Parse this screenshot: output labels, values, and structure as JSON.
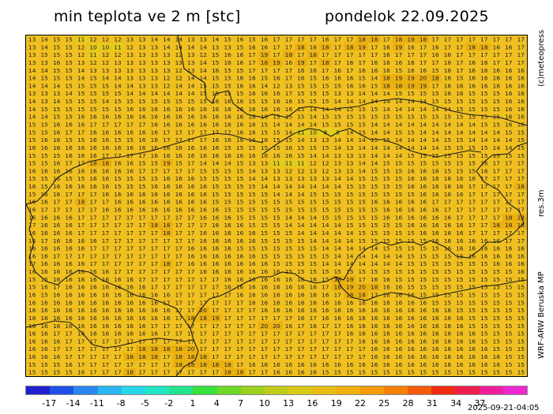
{
  "header": {
    "title_left": "min teplota ve 2 m [stc]",
    "title_right": "pondelok 22.09.2025"
  },
  "side_labels": {
    "copyright": "(c)meteopress",
    "resolution": "res.3m",
    "model": "WRF-ARW Beruska MP"
  },
  "colorbar": {
    "tick_labels": [
      "-17",
      "-14",
      "-11",
      "-8",
      "-5",
      "-2",
      "1",
      "4",
      "7",
      "10",
      "13",
      "16",
      "19",
      "22",
      "25",
      "28",
      "31",
      "34",
      "37"
    ],
    "colors": [
      "#2020d0",
      "#2050e8",
      "#2a86f0",
      "#2ab6f2",
      "#28d8e8",
      "#22e6c4",
      "#22e48e",
      "#3ae03c",
      "#6ed82a",
      "#9ad01e",
      "#c0cc18",
      "#d8c814",
      "#e8bc10",
      "#f0b00a",
      "#f49c08",
      "#f68006",
      "#f65c08",
      "#f42a10",
      "#f01e4c",
      "#f01e9a",
      "#f028d2"
    ]
  },
  "footer": {
    "timestamp": "2025-09-21-04:05"
  },
  "map": {
    "background_color": "#f0c020",
    "rows": [
      "13 14 15 15 11 12 12 12 13 13 14 14 14 13 13 14 15 16 15 16 17 17 17 17 16 17 17 18 18 17 18 19 18 17 17 17 17 17 17 17 17",
      "13 14 15 15 12 10 10 11 12 13 13 14 14 14 14 13 13 15 16 16 17 17 18 16 18 17 18 19 17 16 19 16 17 16 17 17 18 18 16 16 17",
      "13 15 15 15 12 11 12 12 13 13 13 13 12 13 12 15 16 16 17 19 17 18 17 18 17 17 17 17 17 16 17 17 17 16 16 17 17 17 17 17 17",
      "13 13 16 15 13 12 12 13 13 13 13 13 13 13 14 15 16 16 17 18 19 16 19 17 18 17 16 17 16 16 16 16 17 17 16 17 16 16 17 17 17",
      "14 14 15 15 14 13 13 13 13 13 13 13 12 13 14 16 15 15 17 17 17 17 16 16 17 16 17 16 16 16 15 16 16 15 16 17 16 16 16 16 16",
      "14 15 15 15 14 15 14 14 13 13 13 12 12 14 14 15 15 16 16 15 16 17 16 15 16 16 16 15 14 18 19 19 20 18 16 15 16 16 16 16 16",
      "14 14 14 15 15 15 15 14 14 13 13 12 14 14 15 15 15 16 16 14 12 13 15 15 15 15 16 16 15 18 18 19 19 17 16 16 16 16 16 16 16",
      "13 13 13 14 15 15 15 15 14 14 14 14 14 14 15 15 15 15 16 16 16 17 15 15 15 13 13 14 14 14 15 15 15 15 16 16 15 15 15 16 16",
      "14 13 14 15 15 15 14 15 15 15 15 15 15 15 15 16 16 16 15 15 16 16 15 15 15 14 14 14 14 14 14 14 14 15 15 15 15 15 15 16 16",
      "14 15 15 15 15 15 15 15 16 16 16 16 16 16 16 16 16 16 16 16 16 16 15 14 14 14 15 15 15 14 14 14 14 14 14 15 15 15 15 16 16",
      "14 14 15 15 16 16 16 16 16 16 16 16 16 16 16 16 16 16 16 16 15 15 15 14 15 15 15 15 15 15 15 15 15 15 15 15 15 15 15 16 16",
      "15 15 16 16 16 17 17 17 17 17 16 16 16 16 16 16 16 16 16 15 14 14 14 14 15 15 15 15 14 14 14 14 14 14 14 14 14 15 15 16 16",
      "15 15 16 17 17 16 16 16 16 16 16 17 17 17 17 17 17 16 16 15 15 14 11 10 8 8 14 15 14 14 15 15 14 14 14 14 14 14 14 15 15",
      "15 16 16 15 15 16 16 15 15 16 16 17 17 17 17 16 16 16 16 16 15 15 14 13 13 14 14 14 15 15 14 14 14 14 15 15 14 14 14 14 15",
      "16 16 16 16 16 16 16 16 16 16 16 16 16 16 16 16 15 15 15 15 15 16 15 15 15 14 13 14 14 14 14 14 14 14 15 15 15 15 14 14 15",
      "15 15 15 16 16 16 17 17 17 17 16 16 16 16 16 16 16 16 16 16 16 16 15 14 14 13 13 13 14 14 14 15 15 15 15 15 15 15 15 15 15",
      "15 15 16 17 17 18 18 16 16 15 15 19 15 17 14 14 14 15 13 13 11 11 11 12 12 13 13 14 14 15 15 15 15 15 15 15 15 16 17 17 17",
      "16 16 16 16 16 16 16 16 16 17 17 17 17 17 15 15 15 15 14 13 13 12 12 13 12 13 13 14 15 15 15 16 16 16 15 15 15 16 17 17 17",
      "15 15 16 15 15 16 16 15 15 15 15 16 16 16 15 15 15 15 14 14 13 13 13 13 13 14 14 15 15 15 15 16 16 16 16 16 16 17 17 17 17",
      "16 15 16 16 16 16 16 15 15 15 16 16 16 16 16 15 15 15 15 14 14 14 14 14 14 14 15 15 15 15 15 16 16 16 16 16 17 17 17 17 18",
      "15 16 16 17 17 17 16 16 16 16 16 16 16 16 16 15 15 15 15 15 14 14 14 15 15 15 15 15 15 15 15 15 16 16 16 16 17 17 17 17 17",
      "16 16 17 17 18 17 17 16 16 16 16 16 16 16 16 15 15 15 15 15 15 15 15 15 15 15 15 15 16 16 16 16 16 17 17 17 17 17 17 17 17",
      "16 17 17 17 17 17 16 16 16 16 16 16 16 16 16 16 15 15 15 15 15 15 15 15 15 15 15 15 15 16 16 16 16 16 17 17 17 17 17 17 17",
      "16 16 16 16 17 17 17 17 17 17 17 17 17 17 16 16 16 15 15 15 15 14 14 14 15 15 15 15 15 16 16 16 16 16 16 17 17 17 17 18 18",
      "17 16 16 16 17 17 17 17 17 17 18 18 17 17 17 16 16 16 15 15 15 14 14 14 14 14 15 15 15 15 15 16 16 16 16 16 17 17 18 18 18",
      "16 16 16 16 17 17 17 17 17 17 17 18 17 17 16 16 16 16 16 15 15 15 14 14 14 14 14 15 15 15 15 15 16 16 16 16 17 17 17 17 17",
      "16 17 16 16 16 16 17 17 17 17 17 17 17 17 16 16 16 16 16 15 15 15 15 14 14 14 14 15 15 15 15 15 15 16 16 16 16 16 16 17 17",
      "16 16 16 16 16 17 17 17 17 17 17 17 17 16 16 16 16 15 15 15 15 15 15 15 14 14 14 14 14 15 15 15 15 15 16 16 16 16 16 16 16",
      "16 16 17 17 17 17 17 17 17 17 17 17 17 16 16 16 16 16 16 15 15 15 15 15 15 14 14 14 14 14 14 15 15 15 15 15 16 16 16 16 16",
      "17 16 16 16 16 17 17 17 17 17 17 18 17 16 16 16 16 16 16 16 15 15 15 15 14 14 14 14 14 14 14 15 15 15 15 15 15 15 16 16 16",
      "16 16 16 16 16 16 16 17 17 17 17 17 17 17 16 16 16 16 16 16 16 15 15 15 15 15 15 15 15 15 15 15 15 15 15 15 15 15 15 15 16",
      "15 15 16 16 16 16 16 16 16 17 17 17 17 17 17 17 16 16 16 16 16 16 16 16 15 18 19 17 16 16 15 15 15 15 15 15 15 15 15 15 15",
      "15 16 17 16 16 16 16 16 16 16 17 17 17 17 17 17 16 16 16 16 16 16 16 16 17 18 19 20 18 16 16 15 15 15 15 15 15 15 15 15 15",
      "16 15 16 16 16 16 16 16 16 16 16 16 17 17 17 17 17 16 16 16 16 16 16 16 16 17 18 18 17 16 16 16 15 15 15 15 15 15 15 15 15",
      "16 16 16 16 16 16 16 16 16 16 16 17 17 17 17 17 17 17 16 16 16 16 16 16 16 16 16 16 16 16 16 16 16 15 15 15 15 15 15 15 15",
      "16 16 16 16 16 16 16 16 16 16 16 16 17 17 20 17 17 17 17 16 16 16 16 16 16 16 16 16 16 16 16 16 16 16 16 15 15 15 15 15 15",
      "16 16 16 16 16 16 16 16 16 16 16 16 17 18 18 19 17 17 17 17 17 17 16 17 16 16 16 16 16 16 16 16 16 16 16 16 15 15 15 15 15",
      "16 16 16 16 16 16 16 16 16 16 17 17 17 17 17 17 17 17 17 20 20 16 17 16 17 17 16 16 16 16 16 16 16 16 16 16 15 15 15 15 15",
      "16 16 17 17 16 16 16 16 16 16 16 17 17 17 17 17 17 17 17 17 17 17 17 17 17 17 16 16 16 16 16 16 16 16 16 16 16 15 15 15 15",
      "16 16 16 17 17 17 17 17 17 17 17 17 17 17 17 17 17 17 17 17 17 17 17 17 17 17 17 16 16 16 16 16 16 16 16 16 16 15 15 15 15",
      "16 16 17 17 17 17 17 17 17 18 18 18 18 20 17 17 17 17 17 17 17 17 17 17 17 17 17 17 16 16 16 16 16 16 16 16 16 16 15 15 15",
      "16 16 16 17 17 17 17 17 18 18 18 17 18 18 18 17 17 17 17 17 17 17 17 17 17 17 17 17 16 16 16 16 16 16 16 16 16 16 16 15 15",
      "15 15 15 16 17 17 17 17 17 17 17 17 18 18 18 18 18 17 16 16 16 16 16 16 16 16 16 16 16 16 16 16 16 16 16 16 16 16 16 15 15",
      "15 15 15 15 16 17 17 17 18 17 17 17 17 17 17 17 18 18 17 17 16 16 16 16 15 15 15 15 15 15 15 15 15 15 15 15 15 15 15 15 15"
    ]
  }
}
